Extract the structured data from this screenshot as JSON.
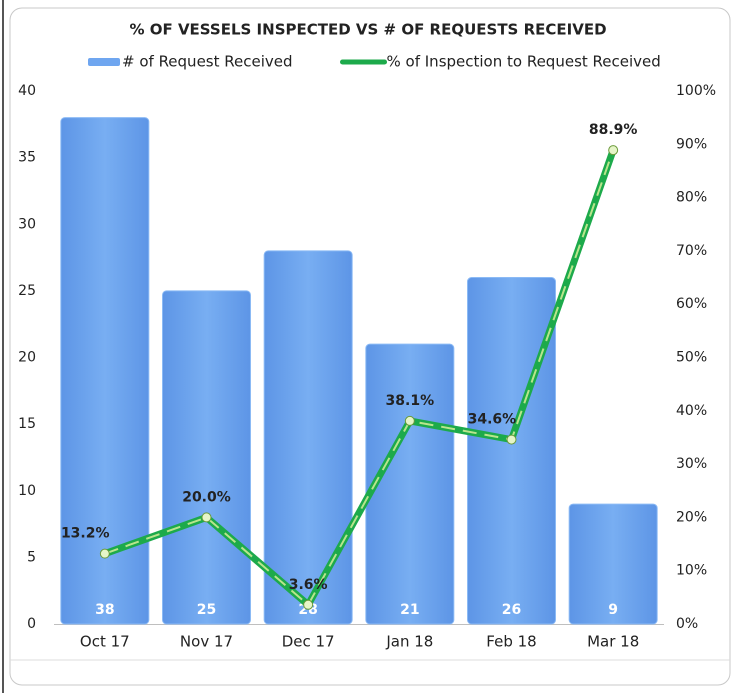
{
  "chart_data": {
    "type": "bar",
    "title": "% OF VESSELS INSPECTED VS # OF REQUESTS RECEIVED",
    "categories": [
      "Oct 17",
      "Nov 17",
      "Dec 17",
      "Jan 18",
      "Feb 18",
      "Mar 18"
    ],
    "series": [
      {
        "name": "# of Request Received",
        "type": "bar",
        "color": "#6fa6f0",
        "values": [
          38,
          25,
          28,
          21,
          26,
          9
        ]
      },
      {
        "name": "% of Inspection to Request Received",
        "type": "line",
        "axis": "y2",
        "color": "#1daa4b",
        "values": [
          13.2,
          20.0,
          3.6,
          38.1,
          34.6,
          88.9
        ],
        "value_labels": [
          "13.2%",
          "20.0%",
          "3.6%",
          "38.1%",
          "34.6%",
          "88.9%"
        ]
      }
    ],
    "ylim": [
      0,
      40
    ],
    "yticks": [
      0,
      5,
      10,
      15,
      20,
      25,
      30,
      35,
      40
    ],
    "y2lim": [
      0,
      100
    ],
    "y2ticks": [
      {
        "value": 0,
        "label": "0%"
      },
      {
        "value": 10,
        "label": "10%"
      },
      {
        "value": 20,
        "label": "20%"
      },
      {
        "value": 30,
        "label": "30%"
      },
      {
        "value": 40,
        "label": "40%"
      },
      {
        "value": 50,
        "label": "50%"
      },
      {
        "value": 60,
        "label": "60%"
      },
      {
        "value": 70,
        "label": "70%"
      },
      {
        "value": 80,
        "label": "80%"
      },
      {
        "value": 90,
        "label": "90%"
      },
      {
        "value": 100,
        "label": "100%"
      }
    ],
    "legend": "top"
  }
}
